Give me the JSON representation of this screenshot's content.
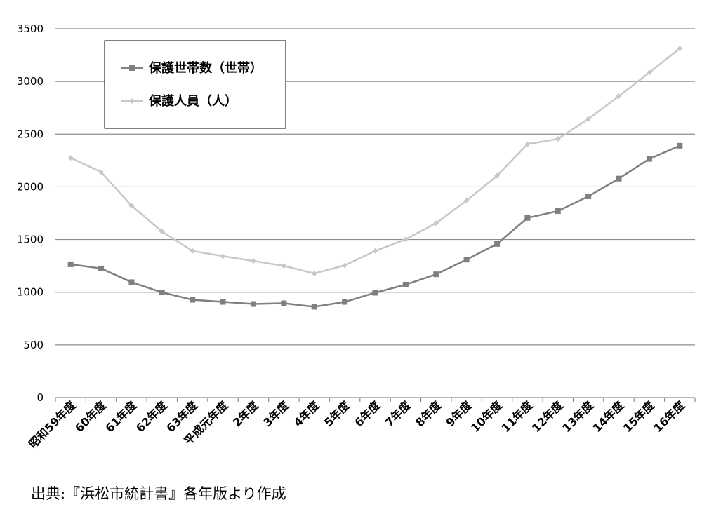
{
  "chart_data": {
    "type": "line",
    "categories": [
      "昭和59年度",
      "60年度",
      "61年度",
      "62年度",
      "63年度",
      "平成元年度",
      "2年度",
      "3年度",
      "4年度",
      "5年度",
      "6年度",
      "7年度",
      "8年度",
      "9年度",
      "10年度",
      "11年度",
      "12年度",
      "13年度",
      "14年度",
      "15年度",
      "16年度"
    ],
    "series": [
      {
        "name": "保護世帯数（世帯）",
        "color": "#7f7f7f",
        "marker": "square",
        "values": [
          1265,
          1225,
          1095,
          998,
          928,
          908,
          888,
          895,
          862,
          908,
          995,
          1072,
          1170,
          1310,
          1458,
          1705,
          1770,
          1910,
          2078,
          2265,
          2390
        ]
      },
      {
        "name": "保護人員（人）",
        "color": "#c8c8c8",
        "marker": "diamond",
        "values": [
          2275,
          2140,
          1820,
          1575,
          1392,
          1342,
          1297,
          1250,
          1178,
          1255,
          1392,
          1502,
          1655,
          1870,
          2105,
          2405,
          2455,
          2645,
          2860,
          3085,
          3312
        ]
      }
    ],
    "ylim": [
      0,
      3500
    ],
    "yticks": [
      0,
      500,
      1000,
      1500,
      2000,
      2500,
      3000,
      3500
    ],
    "grid": true,
    "legend": "top-left"
  },
  "source_note": "出典:『浜松市統計書』各年版より作成"
}
